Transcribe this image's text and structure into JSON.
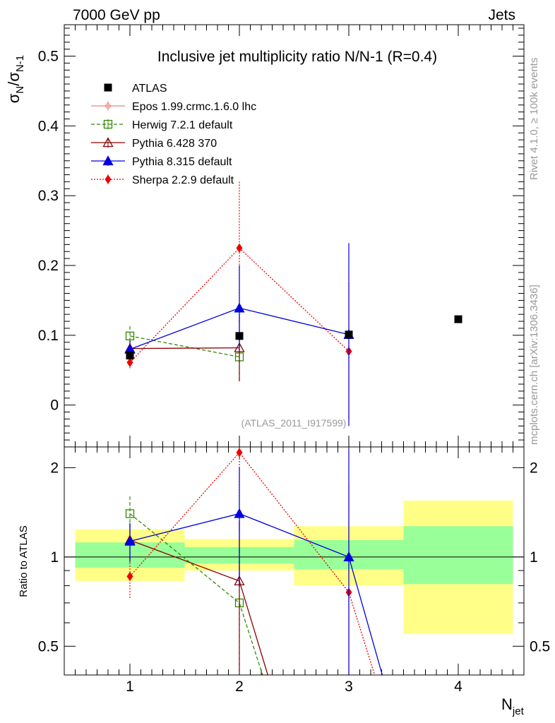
{
  "header": {
    "left": "7000 GeV pp",
    "right": "Jets",
    "side_rivet": "Rivet 4.1.0, ≥ 100k events",
    "side_mcplots": "mcplots.cern.ch [arXiv:1306.3436]",
    "analysis_id": "(ATLAS_2011_I917599)"
  },
  "chart_data": {
    "type": "line",
    "title": "Inclusive jet multiplicity ratio N/N-1 (R=0.4)",
    "xlabel": {
      "main": "N",
      "sub": "jet"
    },
    "ylabel": {
      "main": "σ",
      "sub1": "N",
      "slash": "/σ",
      "sub2": "N-1"
    },
    "ratio_ylabel": "Ratio to ATLAS",
    "xlim": [
      0.4,
      4.6
    ],
    "ylim": [
      -0.06,
      0.545
    ],
    "ratio_ylim": [
      0.4,
      2.35
    ],
    "x_ticks": [
      "1",
      "2",
      "3",
      "4"
    ],
    "y_ticks": [
      "0",
      "0.1",
      "0.2",
      "0.3",
      "0.4",
      "0.5"
    ],
    "ratio_y_ticks": [
      "0.5",
      "1",
      "2"
    ],
    "bands": [
      {
        "x0": 0.5,
        "x1": 1.5,
        "yellow": [
          0.83,
          1.24
        ],
        "green": [
          0.92,
          1.12
        ]
      },
      {
        "x0": 1.5,
        "x1": 2.5,
        "yellow": [
          0.9,
          1.15
        ],
        "green": [
          0.95,
          1.08
        ]
      },
      {
        "x0": 2.5,
        "x1": 3.5,
        "yellow": [
          0.8,
          1.27
        ],
        "green": [
          0.91,
          1.14
        ]
      },
      {
        "x0": 3.5,
        "x1": 4.5,
        "yellow": [
          0.55,
          1.55
        ],
        "green": [
          0.81,
          1.27
        ]
      }
    ],
    "series": [
      {
        "name": "ATLAS",
        "color": "#000000",
        "marker": "square-filled",
        "dash": "",
        "line": false,
        "x": [
          1,
          2,
          3,
          4
        ],
        "y": [
          0.071,
          0.099,
          0.101,
          0.123
        ],
        "ylo": [
          0.071,
          0.099,
          0.101,
          0.123
        ],
        "yhi": [
          0.071,
          0.099,
          0.101,
          0.123
        ],
        "ratio": [
          1,
          1,
          1,
          1
        ],
        "ratio_lo": [
          1,
          1,
          1,
          1
        ],
        "ratio_hi": [
          1,
          1,
          1,
          1
        ]
      },
      {
        "name": "Epos 1.99.crmc.1.6.0 lhc",
        "color": "#f08080",
        "marker": "cross",
        "dash": "",
        "line": true,
        "x": [],
        "y": [],
        "ylo": [],
        "yhi": [],
        "ratio": [],
        "ratio_lo": [],
        "ratio_hi": []
      },
      {
        "name": "Herwig 7.2.1 default",
        "color": "#2e8b00",
        "marker": "square-open",
        "dash": "5,3",
        "line": true,
        "x": [
          1,
          2
        ],
        "y": [
          0.099,
          0.069
        ],
        "ylo": [
          0.085,
          0.034
        ],
        "yhi": [
          0.113,
          0.105
        ],
        "ratio": [
          1.4,
          0.7
        ],
        "ratio_lo": [
          1.2,
          0.34
        ],
        "ratio_hi": [
          1.6,
          1.06
        ]
      },
      {
        "name": "Pythia 6.428 370",
        "color": "#8b0000",
        "marker": "triangle-open",
        "dash": "",
        "line": true,
        "x": [
          1,
          2
        ],
        "y": [
          0.081,
          0.082
        ],
        "ylo": [
          0.07,
          0.034
        ],
        "yhi": [
          0.092,
          0.13
        ],
        "ratio": [
          1.14,
          0.83
        ],
        "ratio_lo": [
          0.98,
          0.34
        ],
        "ratio_hi": [
          1.3,
          1.32
        ]
      },
      {
        "name": "Pythia 8.315 default",
        "color": "#0000dd",
        "marker": "triangle-filled",
        "dash": "",
        "line": true,
        "x": [
          1,
          2,
          3
        ],
        "y": [
          0.08,
          0.139,
          0.101
        ],
        "ylo": [
          0.068,
          0.078,
          -0.03
        ],
        "yhi": [
          0.092,
          0.2,
          0.232
        ],
        "ratio": [
          1.13,
          1.4,
          1.0
        ],
        "ratio_lo": [
          0.96,
          0.79,
          0.3
        ],
        "ratio_hi": [
          1.3,
          2.01,
          2.3
        ]
      },
      {
        "name": "Sherpa 2.2.9 default",
        "color": "#ee0000",
        "marker": "diamond-filled",
        "dash": "2,2",
        "line": true,
        "x": [
          1,
          2,
          3
        ],
        "y": [
          0.061,
          0.225,
          0.077
        ],
        "ylo": [
          0.051,
          0.12,
          -0.02
        ],
        "yhi": [
          0.071,
          0.32,
          0.175
        ],
        "ratio": [
          0.86,
          2.25,
          0.76
        ],
        "ratio_lo": [
          0.72,
          1.22,
          0.2
        ],
        "ratio_hi": [
          1.0,
          3.2,
          1.75
        ]
      }
    ]
  }
}
